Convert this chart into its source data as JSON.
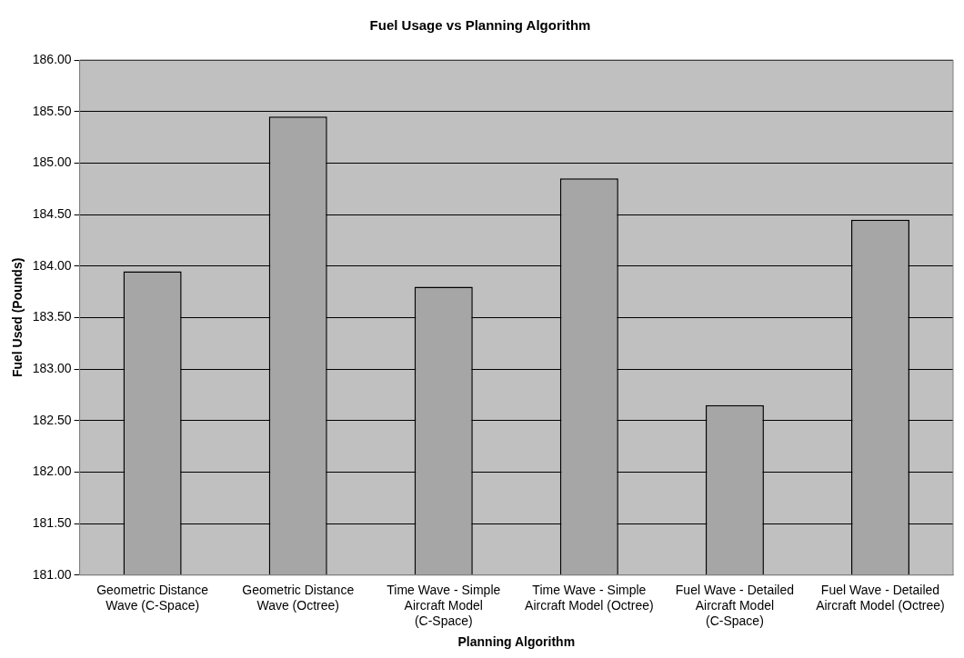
{
  "chart_data": {
    "type": "bar",
    "title": "Fuel Usage vs Planning Algorithm",
    "xlabel": "Planning Algorithm",
    "ylabel": "Fuel Used (Pounds)",
    "categories": [
      "Geometric Distance Wave (C-Space)",
      "Geometric Distance Wave (Octree)",
      "Time Wave - Simple Aircraft Model (C-Space)",
      "Time Wave - Simple Aircraft Model (Octree)",
      "Fuel Wave - Detailed Aircraft Model (C-Space)",
      "Fuel Wave - Detailed Aircraft Model (Octree)"
    ],
    "values": [
      183.95,
      185.45,
      183.8,
      184.85,
      182.65,
      184.45
    ],
    "color": "#a6a6a6",
    "ylim": [
      181,
      186
    ],
    "yticks": [
      {
        "value": 181,
        "label": "181.00"
      },
      {
        "value": 181.5,
        "label": "181.50"
      },
      {
        "value": 182,
        "label": "182.00"
      },
      {
        "value": 182.5,
        "label": "182.50"
      },
      {
        "value": 183,
        "label": "183.00"
      },
      {
        "value": 183.5,
        "label": "183.50"
      },
      {
        "value": 184,
        "label": "184.00"
      },
      {
        "value": 184.5,
        "label": "184.50"
      },
      {
        "value": 185,
        "label": "185.00"
      },
      {
        "value": 185.5,
        "label": "185.50"
      },
      {
        "value": 186,
        "label": "186.00"
      }
    ],
    "grid": "y",
    "legend": false
  }
}
